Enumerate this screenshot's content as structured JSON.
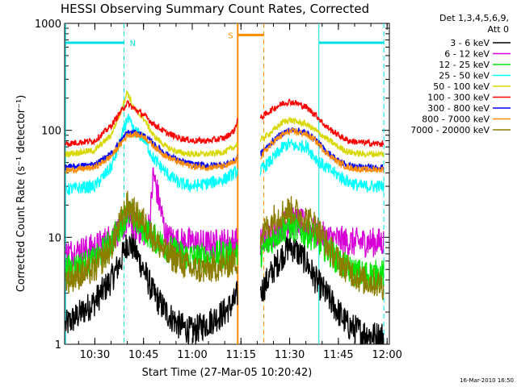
{
  "chart_data": {
    "type": "line",
    "title": "HESSI Observing Summary Count Rates, Corrected",
    "xlabel": "Start Time (27-Mar-05 10:20:42)",
    "ylabel": "Corrected Count Rate (s⁻¹ detector⁻¹)",
    "yscale": "log",
    "ylim": [
      1,
      1000
    ],
    "xlim": [
      "10:20:42",
      "12:00:42"
    ],
    "x_ticks": [
      "10:30",
      "10:45",
      "11:00",
      "11:15",
      "11:30",
      "11:45",
      "12:00"
    ],
    "y_ticks": [
      "1",
      "10",
      "100",
      "1000"
    ],
    "detector_label": "Det 1,3,4,5,6,9,",
    "attenuator_label": "Att 0",
    "timestamp": "16-Mar-2010 16:50",
    "grid": false,
    "legend_position": "right",
    "night_label": "N",
    "saa_label": "S",
    "series": [
      {
        "name": "3 - 6 keV",
        "color": "#000000",
        "x": [
          "10:21",
          "10:30",
          "10:35",
          "10:38",
          "10:40",
          "10:42",
          "10:45",
          "10:48",
          "10:52",
          "10:56",
          "11:00",
          "11:05",
          "11:10",
          "11:13",
          "11:14"
        ],
        "values": [
          1.5,
          2.5,
          4,
          6,
          9,
          8,
          5,
          3,
          2,
          1.5,
          1.3,
          1.6,
          2,
          2.5,
          3
        ]
      },
      {
        "name": "6 - 12 keV",
        "color": "#d600d6",
        "x": [
          "10:21",
          "10:30",
          "10:35",
          "10:38",
          "10:40",
          "10:42",
          "10:45",
          "10:47",
          "10:48",
          "10:52",
          "10:56",
          "11:00",
          "11:05",
          "11:10",
          "11:13",
          "11:14"
        ],
        "values": [
          7,
          8,
          10,
          12,
          14,
          13,
          11,
          14,
          40,
          10,
          9,
          9,
          8.5,
          9,
          9,
          9
        ]
      },
      {
        "name": "12 - 25 keV",
        "color": "#00e600",
        "x": [
          "10:21",
          "10:30",
          "10:35",
          "10:38",
          "10:40",
          "10:42",
          "10:45",
          "10:48",
          "10:52",
          "10:56",
          "11:00",
          "11:05",
          "11:10",
          "11:13",
          "11:14"
        ],
        "values": [
          5,
          6,
          9,
          13,
          17,
          15,
          12,
          10,
          8,
          7,
          6.5,
          6.5,
          7,
          7,
          7
        ]
      },
      {
        "name": "25 - 50 keV",
        "color": "#00ffff",
        "x": [
          "10:21",
          "10:30",
          "10:35",
          "10:38",
          "10:40",
          "10:42",
          "10:45",
          "10:48",
          "10:52",
          "10:56",
          "11:00",
          "11:05",
          "11:10",
          "11:13",
          "11:14"
        ],
        "values": [
          28,
          30,
          45,
          80,
          130,
          100,
          85,
          55,
          40,
          32,
          30,
          32,
          35,
          40,
          42
        ]
      },
      {
        "name": "50 - 100 keV",
        "color": "#d8d800",
        "x": [
          "10:21",
          "10:30",
          "10:35",
          "10:38",
          "10:40",
          "10:42",
          "10:45",
          "10:48",
          "10:52",
          "10:56",
          "11:00",
          "11:05",
          "11:10",
          "11:13",
          "11:14"
        ],
        "values": [
          60,
          65,
          90,
          150,
          230,
          160,
          130,
          90,
          70,
          62,
          60,
          60,
          63,
          70,
          75
        ]
      },
      {
        "name": "100 - 300 keV",
        "color": "#ff0000",
        "x": [
          "10:21",
          "10:30",
          "10:35",
          "10:38",
          "10:40",
          "10:42",
          "10:45",
          "10:48",
          "10:52",
          "10:56",
          "11:00",
          "11:05",
          "11:10",
          "11:13",
          "11:14"
        ],
        "values": [
          75,
          80,
          110,
          150,
          180,
          160,
          140,
          115,
          95,
          85,
          80,
          80,
          85,
          100,
          130
        ]
      },
      {
        "name": "300 - 800 keV",
        "color": "#0000ff",
        "x": [
          "10:21",
          "10:30",
          "10:35",
          "10:38",
          "10:40",
          "10:42",
          "10:45",
          "10:48",
          "10:52",
          "10:56",
          "11:00",
          "11:05",
          "11:10",
          "11:13",
          "11:14"
        ],
        "values": [
          45,
          48,
          60,
          80,
          95,
          95,
          90,
          75,
          60,
          52,
          48,
          47,
          48,
          52,
          58
        ]
      },
      {
        "name": "800 - 7000 keV",
        "color": "#ff8c00",
        "x": [
          "10:21",
          "10:30",
          "10:35",
          "10:38",
          "10:40",
          "10:42",
          "10:45",
          "10:48",
          "10:52",
          "10:56",
          "11:00",
          "11:05",
          "11:10",
          "11:13",
          "11:14"
        ],
        "values": [
          42,
          45,
          57,
          75,
          90,
          92,
          88,
          72,
          57,
          50,
          46,
          45,
          46,
          50,
          55
        ]
      },
      {
        "name": "7000 - 20000 keV",
        "color": "#8b7d00",
        "x": [
          "10:21",
          "10:30",
          "10:35",
          "10:38",
          "10:40",
          "10:42",
          "10:45",
          "10:48",
          "10:52",
          "10:56",
          "11:00",
          "11:05",
          "11:10",
          "11:13",
          "11:14"
        ],
        "values": [
          4,
          5,
          8,
          14,
          20,
          17,
          14,
          10,
          7,
          6,
          5,
          5,
          5.5,
          6,
          6
        ]
      }
    ],
    "series_segment2": [
      {
        "name": "3 - 6 keV",
        "x": [
          "11:21",
          "11:25",
          "11:28",
          "11:30",
          "11:32",
          "11:35",
          "11:38",
          "11:41",
          "11:45",
          "11:48",
          "11:52",
          "11:56",
          "11:59"
        ],
        "values": [
          3,
          5,
          7,
          8.5,
          7.5,
          6,
          4,
          3,
          2,
          1.5,
          1.3,
          1.2,
          1.2
        ]
      },
      {
        "name": "6 - 12 keV",
        "x": [
          "11:21",
          "11:25",
          "11:28",
          "11:30",
          "11:32",
          "11:35",
          "11:38",
          "11:41",
          "11:45",
          "11:48",
          "11:52",
          "11:56",
          "11:59"
        ],
        "values": [
          9,
          11,
          13,
          14,
          14,
          13,
          11,
          10,
          9.5,
          9,
          9,
          9,
          9
        ]
      },
      {
        "name": "12 - 25 keV",
        "x": [
          "11:21",
          "11:25",
          "11:28",
          "11:30",
          "11:32",
          "11:35",
          "11:38",
          "11:41",
          "11:45",
          "11:48",
          "11:52",
          "11:56",
          "11:59"
        ],
        "values": [
          7,
          10,
          12,
          13,
          12,
          11,
          10,
          8,
          6,
          5,
          4.5,
          4.5,
          4.5
        ]
      },
      {
        "name": "25 - 50 keV",
        "x": [
          "11:21",
          "11:25",
          "11:28",
          "11:30",
          "11:32",
          "11:35",
          "11:38",
          "11:41",
          "11:45",
          "11:48",
          "11:52",
          "11:56",
          "11:59"
        ],
        "values": [
          42,
          55,
          70,
          75,
          70,
          72,
          55,
          45,
          38,
          33,
          30,
          30,
          30
        ]
      },
      {
        "name": "50 - 100 keV",
        "x": [
          "11:21",
          "11:25",
          "11:28",
          "11:30",
          "11:32",
          "11:35",
          "11:38",
          "11:41",
          "11:45",
          "11:48",
          "11:52",
          "11:56",
          "11:59"
        ],
        "values": [
          80,
          100,
          120,
          125,
          120,
          115,
          100,
          85,
          70,
          63,
          60,
          60,
          60
        ]
      },
      {
        "name": "100 - 300 keV",
        "x": [
          "11:21",
          "11:25",
          "11:28",
          "11:30",
          "11:32",
          "11:35",
          "11:38",
          "11:41",
          "11:45",
          "11:48",
          "11:52",
          "11:56",
          "11:59"
        ],
        "values": [
          130,
          160,
          180,
          185,
          180,
          165,
          140,
          110,
          90,
          80,
          77,
          75,
          75
        ]
      },
      {
        "name": "300 - 800 keV",
        "x": [
          "11:21",
          "11:25",
          "11:28",
          "11:30",
          "11:32",
          "11:35",
          "11:38",
          "11:41",
          "11:45",
          "11:48",
          "11:52",
          "11:56",
          "11:59"
        ],
        "values": [
          60,
          80,
          95,
          100,
          100,
          95,
          82,
          65,
          52,
          47,
          45,
          45,
          45
        ]
      },
      {
        "name": "800 - 7000 keV",
        "x": [
          "11:21",
          "11:25",
          "11:28",
          "11:30",
          "11:32",
          "11:35",
          "11:38",
          "11:41",
          "11:45",
          "11:48",
          "11:52",
          "11:56",
          "11:59"
        ],
        "values": [
          57,
          78,
          92,
          97,
          97,
          92,
          80,
          63,
          50,
          45,
          43,
          43,
          43
        ]
      },
      {
        "name": "7000 - 20000 keV",
        "x": [
          "11:21",
          "11:25",
          "11:28",
          "11:30",
          "11:32",
          "11:35",
          "11:38",
          "11:41",
          "11:45",
          "11:48",
          "11:52",
          "11:56",
          "11:59"
        ],
        "values": [
          10,
          15,
          17,
          18,
          17,
          15,
          13,
          9,
          6,
          5,
          4,
          3.8,
          3.5
        ]
      }
    ],
    "night_intervals": [
      [
        "10:21",
        "10:39"
      ],
      [
        "11:39",
        "11:59"
      ]
    ],
    "saa_interval": [
      "11:14",
      "11:22"
    ],
    "night_marker_color": "#00e0e0",
    "saa_marker_color": "#ff8c00"
  }
}
